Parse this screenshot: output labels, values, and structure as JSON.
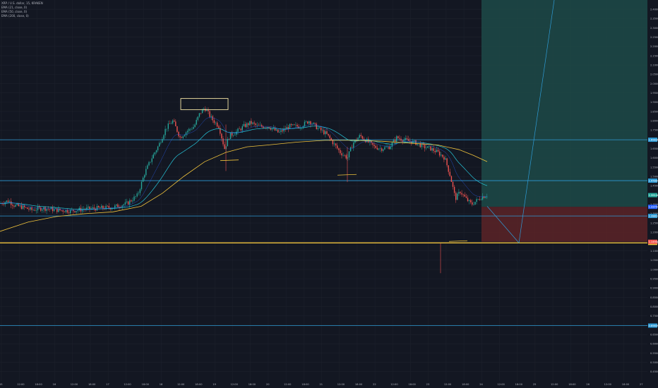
{
  "legend": {
    "title": "XRP / U.S. dollar, 15, KRAKEN",
    "indicators": [
      "EMA (21, close, 0)",
      "EMA (50, close, 0)",
      "EMA (200, close, 0)"
    ]
  },
  "colors": {
    "background": "#131722",
    "grid": "#1e222d",
    "candle_up": "#26a69a",
    "candle_down": "#ef5350",
    "ema_fast": "#2962ff",
    "ema_mid": "#26c6da",
    "ema_slow": "#f0c33c",
    "level_line": "#2e9bd6",
    "support_line": "#f0c33c",
    "target_zone": "#1d4a48",
    "stop_zone": "#5c2327",
    "box": "#f5e6a6"
  },
  "chart_data": {
    "type": "candlestick",
    "symbol": "XRP/USD",
    "timeframe": "15",
    "exchange": "KRAKEN",
    "ylim": [
      0.4,
      2.45
    ],
    "y_ticks": [
      2.4,
      2.35,
      2.3,
      2.25,
      2.2,
      2.15,
      2.1,
      2.05,
      2.0,
      1.95,
      1.9,
      1.85,
      1.8,
      1.75,
      1.7,
      1.65,
      1.6,
      1.55,
      1.5,
      1.45,
      1.4,
      1.35,
      1.3,
      1.25,
      1.2,
      1.15,
      1.1,
      1.05,
      1.0,
      0.95,
      0.9,
      0.85,
      0.8,
      0.75,
      0.7,
      0.65,
      0.6,
      0.55,
      0.5,
      0.45
    ],
    "x_ticks": [
      "15",
      "12:00",
      "18:00",
      "16",
      "12:00",
      "18:00",
      "17",
      "12:00",
      "18:00",
      "18",
      "12:00",
      "18:00",
      "19",
      "12:00",
      "18:00",
      "20",
      "12:00",
      "18:00",
      "21",
      "12:00",
      "18:00",
      "22",
      "12:00",
      "18:00",
      "23",
      "12:00",
      "18:00",
      "24",
      "12:00",
      "18:00",
      "25",
      "12:00",
      "18:00",
      "26",
      "12:00",
      "18:00",
      "27"
    ],
    "price_path": [
      [
        0,
        1.355
      ],
      [
        12,
        1.37
      ],
      [
        20,
        1.345
      ],
      [
        32,
        1.335
      ],
      [
        45,
        1.32
      ],
      [
        60,
        1.33
      ],
      [
        80,
        1.32
      ],
      [
        100,
        1.315
      ],
      [
        120,
        1.325
      ],
      [
        140,
        1.33
      ],
      [
        160,
        1.335
      ],
      [
        180,
        1.355
      ],
      [
        195,
        1.4
      ],
      [
        205,
        1.52
      ],
      [
        215,
        1.6
      ],
      [
        225,
        1.67
      ],
      [
        235,
        1.76
      ],
      [
        245,
        1.8
      ],
      [
        255,
        1.71
      ],
      [
        265,
        1.745
      ],
      [
        275,
        1.77
      ],
      [
        283,
        1.84
      ],
      [
        290,
        1.87
      ],
      [
        300,
        1.81
      ],
      [
        310,
        1.77
      ],
      [
        318,
        1.65
      ],
      [
        325,
        1.72
      ],
      [
        335,
        1.74
      ],
      [
        345,
        1.77
      ],
      [
        355,
        1.79
      ],
      [
        365,
        1.77
      ],
      [
        380,
        1.77
      ],
      [
        395,
        1.735
      ],
      [
        410,
        1.77
      ],
      [
        425,
        1.77
      ],
      [
        438,
        1.8
      ],
      [
        450,
        1.76
      ],
      [
        462,
        1.73
      ],
      [
        472,
        1.68
      ],
      [
        482,
        1.63
      ],
      [
        492,
        1.6
      ],
      [
        500,
        1.68
      ],
      [
        510,
        1.72
      ],
      [
        520,
        1.69
      ],
      [
        530,
        1.66
      ],
      [
        540,
        1.65
      ],
      [
        552,
        1.66
      ],
      [
        562,
        1.71
      ],
      [
        570,
        1.7
      ],
      [
        580,
        1.69
      ],
      [
        590,
        1.68
      ],
      [
        600,
        1.66
      ],
      [
        610,
        1.65
      ],
      [
        620,
        1.63
      ],
      [
        630,
        1.6
      ],
      [
        638,
        1.5
      ],
      [
        645,
        1.38
      ],
      [
        652,
        1.42
      ],
      [
        660,
        1.38
      ],
      [
        668,
        1.35
      ],
      [
        675,
        1.37
      ],
      [
        682,
        1.39
      ],
      [
        690,
        1.4
      ]
    ],
    "ema_slow_path": [
      [
        0,
        1.205
      ],
      [
        40,
        1.255
      ],
      [
        80,
        1.285
      ],
      [
        120,
        1.3
      ],
      [
        160,
        1.31
      ],
      [
        200,
        1.34
      ],
      [
        230,
        1.41
      ],
      [
        260,
        1.5
      ],
      [
        290,
        1.58
      ],
      [
        320,
        1.63
      ],
      [
        350,
        1.66
      ],
      [
        380,
        1.67
      ],
      [
        420,
        1.685
      ],
      [
        460,
        1.695
      ],
      [
        500,
        1.695
      ],
      [
        540,
        1.69
      ],
      [
        580,
        1.68
      ],
      [
        620,
        1.67
      ],
      [
        650,
        1.645
      ],
      [
        670,
        1.615
      ],
      [
        690,
        1.58
      ]
    ],
    "horizontal_levels": [
      {
        "price": 1.698,
        "label": "1.69838",
        "style": "level"
      },
      {
        "price": 1.478,
        "label": "1.47800",
        "style": "level"
      },
      {
        "price": 1.288,
        "label": "1.28810",
        "style": "level"
      },
      {
        "price": 1.143,
        "label": "1.14300",
        "style": "support"
      },
      {
        "price": 0.698,
        "label": "0.69800",
        "style": "level"
      }
    ],
    "position": {
      "type": "long",
      "entry": 1.337,
      "stop": 1.149,
      "target": 2.45,
      "entry_label": "1.33700",
      "stop_label": "1.14900"
    },
    "current_price_label": "1.39140"
  }
}
